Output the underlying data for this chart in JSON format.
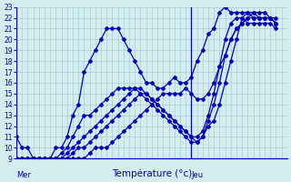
{
  "xlabel": "Température (°c)",
  "bg_color": "#d4eef0",
  "grid_color": "#a8cdd0",
  "line_color": "#0000bb",
  "axis_color": "#0000bb",
  "ylim": [
    9,
    23
  ],
  "yticks": [
    9,
    10,
    11,
    12,
    13,
    14,
    15,
    16,
    17,
    18,
    19,
    20,
    21,
    22,
    23
  ],
  "xlim": [
    0,
    48
  ],
  "mer_x": 0,
  "jeu_x": 31,
  "mer_label": "Mer",
  "jeu_label": "Jeu",
  "series": [
    {
      "x": [
        0,
        1,
        2,
        3,
        4,
        5,
        6,
        7,
        8,
        9,
        10,
        11,
        12,
        13,
        14,
        15,
        16,
        17,
        18,
        19,
        20,
        21,
        22,
        23,
        24,
        25,
        26,
        27,
        28,
        29,
        30,
        31,
        32,
        33,
        34,
        35,
        36,
        37,
        38,
        39,
        40,
        41,
        42,
        43,
        44,
        45,
        46
      ],
      "y": [
        9,
        9,
        9,
        9,
        9,
        9,
        9,
        10,
        10,
        11,
        13,
        14,
        17,
        18,
        19,
        20,
        21,
        21,
        21,
        20,
        19,
        18,
        17,
        16,
        16,
        15.5,
        15.5,
        16,
        16.5,
        16,
        16,
        16.5,
        18,
        19,
        20.5,
        21,
        22.5,
        23,
        22.5,
        22.5,
        22.5,
        22.5,
        22,
        22,
        22,
        22,
        22
      ]
    },
    {
      "x": [
        0,
        1,
        2,
        3,
        4,
        5,
        6,
        7,
        8,
        9,
        10,
        11,
        12,
        13,
        14,
        15,
        16,
        17,
        18,
        19,
        20,
        21,
        22,
        23,
        24,
        25,
        26,
        27,
        28,
        29,
        30,
        31,
        32,
        33,
        34,
        35,
        36,
        37,
        38,
        39,
        40,
        41,
        42,
        43,
        44,
        45,
        46
      ],
      "y": [
        9,
        9,
        9,
        9,
        9,
        9,
        9,
        9,
        9.5,
        10,
        11,
        12,
        13,
        13,
        13.5,
        14,
        14.5,
        15,
        15.5,
        15.5,
        15.5,
        15.5,
        15,
        14.5,
        14,
        13.5,
        13,
        12.5,
        12,
        11.5,
        11,
        10.5,
        10.5,
        11,
        12,
        12.5,
        14,
        16,
        18,
        20,
        22,
        22.5,
        22.5,
        22,
        22,
        22,
        21.5
      ]
    },
    {
      "x": [
        0,
        1,
        2,
        3,
        4,
        5,
        6,
        7,
        8,
        9,
        10,
        11,
        12,
        13,
        14,
        15,
        16,
        17,
        18,
        19,
        20,
        21,
        22,
        23,
        24,
        25,
        26,
        27,
        28,
        29,
        30,
        31,
        32,
        33,
        34,
        35,
        36,
        37,
        38,
        39,
        40,
        41,
        42,
        43,
        44,
        45,
        46
      ],
      "y": [
        9,
        9,
        9,
        9,
        9,
        9,
        9,
        9,
        9,
        9.5,
        10,
        10.5,
        11,
        11.5,
        12,
        12.5,
        13,
        13.5,
        14,
        14.5,
        15,
        15.5,
        15.5,
        15,
        14.5,
        14,
        13.5,
        13,
        12.5,
        12,
        11.5,
        11,
        11,
        11.5,
        13,
        15,
        17.5,
        20,
        21.5,
        22,
        22,
        21.5,
        21.5,
        21.5,
        21.5,
        21.5,
        21
      ]
    },
    {
      "x": [
        0,
        1,
        2,
        3,
        4,
        5,
        6,
        7,
        8,
        9,
        10,
        11,
        12,
        13,
        14,
        15,
        16,
        17,
        18,
        19,
        20,
        21,
        22,
        23,
        24,
        25,
        26,
        27,
        28,
        29,
        30,
        31,
        32,
        33,
        34,
        35,
        36,
        37,
        38,
        39,
        40,
        41,
        42,
        43,
        44,
        45,
        46
      ],
      "y": [
        9,
        9,
        9,
        9,
        9,
        9,
        9,
        9,
        9,
        9,
        9.5,
        10,
        10,
        10.5,
        11,
        11.5,
        12,
        12.5,
        13,
        13.5,
        14,
        14.5,
        15,
        15,
        14.5,
        14,
        13.5,
        13,
        12.5,
        12,
        11.5,
        11,
        10.5,
        11,
        12.5,
        14,
        16,
        18.5,
        20,
        21,
        21.5,
        22,
        22,
        22,
        22,
        22,
        21.5
      ]
    },
    {
      "x": [
        0,
        1,
        2,
        3,
        4,
        5,
        6,
        7,
        8,
        9,
        10,
        11,
        12,
        13,
        14,
        15,
        16,
        17,
        18,
        19,
        20,
        21,
        22,
        23,
        24,
        25,
        26,
        27,
        28,
        29,
        30,
        31,
        32,
        33,
        34,
        35,
        36,
        37,
        38,
        39,
        40,
        41,
        42,
        43,
        44,
        45,
        46
      ],
      "y": [
        11,
        10,
        10,
        9,
        9,
        9,
        9,
        9,
        9,
        9,
        9,
        9,
        9,
        9.5,
        10,
        10,
        10,
        10.5,
        11,
        11.5,
        12,
        12.5,
        13,
        13.5,
        14,
        14.5,
        15,
        15,
        15,
        15,
        15.5,
        15,
        14.5,
        14.5,
        15,
        16,
        17.5,
        18.5,
        20,
        21,
        21.5,
        22,
        22.5,
        22.5,
        22.5,
        22,
        21.5
      ]
    }
  ]
}
